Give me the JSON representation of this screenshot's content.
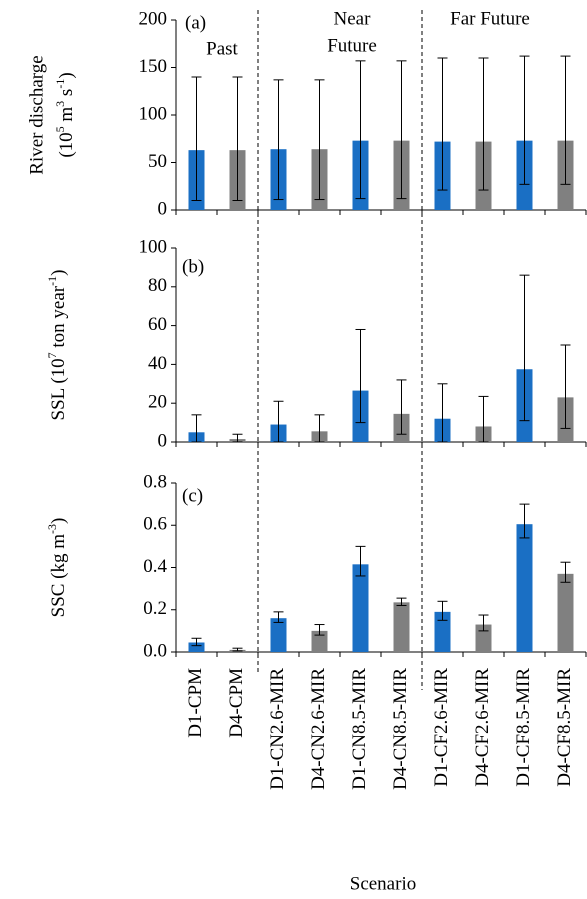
{
  "chart_data": [
    {
      "type": "bar",
      "label": "(a)",
      "annotations": [
        "Past",
        "Near",
        "Future",
        "Far Future"
      ],
      "ylabel": [
        "River discharge"
      ],
      "ylabel_units": [
        "(10",
        "5",
        " m",
        "3",
        " s",
        "-1",
        ")"
      ],
      "values": [
        63,
        63,
        64,
        64,
        73,
        73,
        72,
        72,
        73,
        73
      ],
      "error_low": [
        10,
        10,
        11,
        11,
        12,
        12,
        21,
        21,
        27,
        27
      ],
      "error_high": [
        140,
        140,
        137,
        137,
        157,
        157,
        160,
        160,
        162,
        162
      ],
      "colors": [
        "#1a6fc4",
        "#808080",
        "#1a6fc4",
        "#808080",
        "#1a6fc4",
        "#808080",
        "#1a6fc4",
        "#808080",
        "#1a6fc4",
        "#808080"
      ],
      "ylim": [
        0,
        200
      ],
      "yticks": [
        0,
        50,
        100,
        150,
        200
      ]
    },
    {
      "type": "bar",
      "label": "(b)",
      "ylabel": [
        "SSL (10",
        "7",
        " ton year",
        "-1",
        ")"
      ],
      "values": [
        5,
        1.5,
        9,
        5.5,
        26.5,
        14.5,
        12,
        8,
        37.5,
        23
      ],
      "error_low": [
        0,
        0,
        0,
        0,
        10,
        4,
        0,
        0,
        11,
        7
      ],
      "error_high": [
        14,
        4,
        21,
        14,
        58,
        32,
        30,
        23.5,
        86,
        50
      ],
      "colors": [
        "#1a6fc4",
        "#808080",
        "#1a6fc4",
        "#808080",
        "#1a6fc4",
        "#808080",
        "#1a6fc4",
        "#808080",
        "#1a6fc4",
        "#808080"
      ],
      "ylim": [
        0,
        100
      ],
      "yticks": [
        0,
        20,
        40,
        60,
        80,
        100
      ]
    },
    {
      "type": "bar",
      "label": "(c)",
      "ylabel": [
        "SSC (kg m",
        "-3",
        ")"
      ],
      "categories": [
        "D1-CPM",
        "D4-CPM",
        "D1-CN2.6-MIR",
        "D4-CN2.6-MIR",
        "D1-CN8.5-MIR",
        "D4-CN8.5-MIR",
        "D1-CF2.6-MIR",
        "D4-CF2.6-MIR",
        "D1-CF8.5-MIR",
        "D4-CF8.5-MIR"
      ],
      "xlabel": "Scenario",
      "values": [
        0.045,
        0.01,
        0.16,
        0.1,
        0.415,
        0.235,
        0.19,
        0.13,
        0.605,
        0.37
      ],
      "error_low": [
        0.03,
        0.005,
        0.14,
        0.08,
        0.36,
        0.22,
        0.15,
        0.1,
        0.54,
        0.33
      ],
      "error_high": [
        0.065,
        0.018,
        0.19,
        0.13,
        0.5,
        0.255,
        0.24,
        0.175,
        0.7,
        0.425
      ],
      "colors": [
        "#1a6fc4",
        "#808080",
        "#1a6fc4",
        "#808080",
        "#1a6fc4",
        "#808080",
        "#1a6fc4",
        "#808080",
        "#1a6fc4",
        "#808080"
      ],
      "ylim": [
        0,
        0.8
      ],
      "yticks": [
        {
          "value": 0,
          "label": "0.0"
        },
        {
          "value": 0.2,
          "label": "0.2"
        },
        {
          "value": 0.4,
          "label": "0.4"
        },
        {
          "value": 0.6,
          "label": "0.6"
        },
        {
          "value": 0.8,
          "label": "0.8"
        }
      ]
    }
  ]
}
